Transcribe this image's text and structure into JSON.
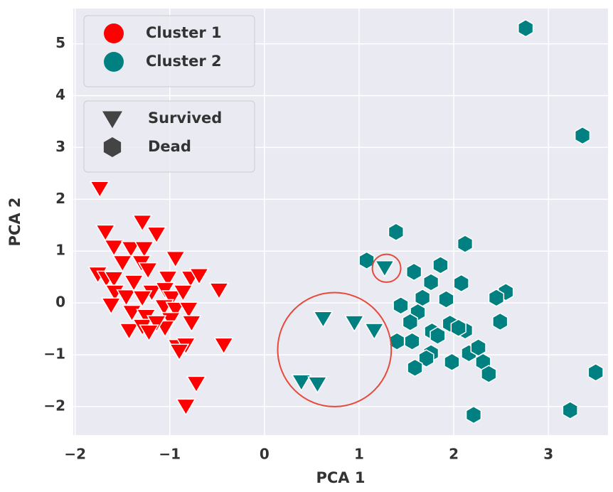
{
  "chart_data": {
    "type": "scatter",
    "xlabel": "PCA 1",
    "ylabel": "PCA 2",
    "xlim": [
      -2.02,
      3.63
    ],
    "ylim": [
      -2.55,
      5.68
    ],
    "xticks": [
      {
        "value": -2,
        "label": "−2"
      },
      {
        "value": -1,
        "label": "−1"
      },
      0,
      1,
      2,
      3
    ],
    "yticks": [
      {
        "value": -2,
        "label": "−2"
      },
      {
        "value": -1,
        "label": "−1"
      },
      0,
      1,
      2,
      3,
      4,
      5
    ],
    "grid": true,
    "legend_position": "upper left",
    "style_legend": [
      {
        "name": "Survived",
        "marker": "triangle"
      },
      {
        "name": "Dead",
        "marker": "hexagon"
      }
    ],
    "series": [
      {
        "name": "Cluster 1",
        "color": "#ff0000",
        "marker": "triangle",
        "x": [
          -1.74,
          -1.29,
          -1.68,
          -1.14,
          -1.59,
          -1.41,
          -1.27,
          -0.94,
          -1.76,
          -1.67,
          -1.59,
          -1.5,
          -1.3,
          -1.23,
          -1.02,
          -0.78,
          -0.69,
          -1.58,
          -1.38,
          -1.46,
          -1.19,
          -1.05,
          -0.98,
          -0.86,
          -0.48,
          -1.62,
          -1.29,
          -1.4,
          -1.06,
          -0.94,
          -0.8,
          -1.25,
          -0.99,
          -0.77,
          -1.43,
          -1.29,
          -1.05,
          -1.14,
          -1.22,
          -0.92,
          -0.83,
          -0.43,
          -0.9,
          -0.72,
          -0.83
        ],
        "y": [
          2.21,
          1.56,
          1.37,
          1.33,
          1.08,
          1.05,
          1.05,
          0.86,
          0.56,
          0.48,
          0.47,
          0.78,
          0.78,
          0.64,
          0.48,
          0.48,
          0.53,
          0.21,
          0.4,
          0.12,
          0.21,
          0.26,
          0.1,
          0.21,
          0.25,
          -0.04,
          0.1,
          -0.18,
          -0.07,
          -0.12,
          -0.12,
          -0.26,
          -0.32,
          -0.38,
          -0.53,
          -0.45,
          -0.48,
          -0.38,
          -0.56,
          -0.84,
          -0.81,
          -0.81,
          -0.93,
          -1.55,
          -1.99
        ]
      },
      {
        "name": "Cluster 2",
        "color": "#008080",
        "marker": "triangle",
        "x": [
          1.27,
          0.62,
          0.95,
          1.16,
          0.39,
          0.56
        ],
        "y": [
          0.68,
          -0.3,
          -0.38,
          -0.53,
          -1.52,
          -1.56
        ]
      },
      {
        "name": "Cluster 2",
        "color": "#008080",
        "marker": "hexagon",
        "x": [
          2.76,
          3.36,
          1.39,
          2.12,
          1.08,
          1.58,
          1.86,
          1.76,
          2.08,
          2.55,
          2.45,
          1.67,
          1.92,
          1.44,
          1.62,
          2.49,
          1.54,
          1.96,
          2.12,
          2.05,
          1.77,
          1.83,
          1.4,
          1.56,
          1.76,
          1.71,
          2.16,
          2.26,
          1.98,
          2.31,
          1.59,
          2.37,
          3.5,
          3.23,
          2.21
        ],
        "y": [
          5.3,
          3.23,
          1.37,
          1.14,
          0.82,
          0.6,
          0.73,
          0.4,
          0.38,
          0.21,
          0.1,
          0.1,
          0.07,
          -0.05,
          -0.18,
          -0.36,
          -0.37,
          -0.4,
          -0.53,
          -0.48,
          -0.55,
          -0.63,
          -0.74,
          -0.74,
          -0.97,
          -1.07,
          -0.97,
          -0.86,
          -1.14,
          -1.14,
          -1.25,
          -1.37,
          -1.34,
          -2.07,
          -2.16
        ]
      }
    ],
    "annotations": [
      {
        "shape": "ellipse",
        "x": 1.29,
        "y": 0.67,
        "rx": 0.15,
        "ry": 0.27,
        "color": "#e8493a"
      },
      {
        "shape": "ellipse",
        "x": 0.74,
        "y": -0.9,
        "rx": 0.6,
        "ry": 1.1,
        "color": "#e8493a"
      }
    ]
  }
}
